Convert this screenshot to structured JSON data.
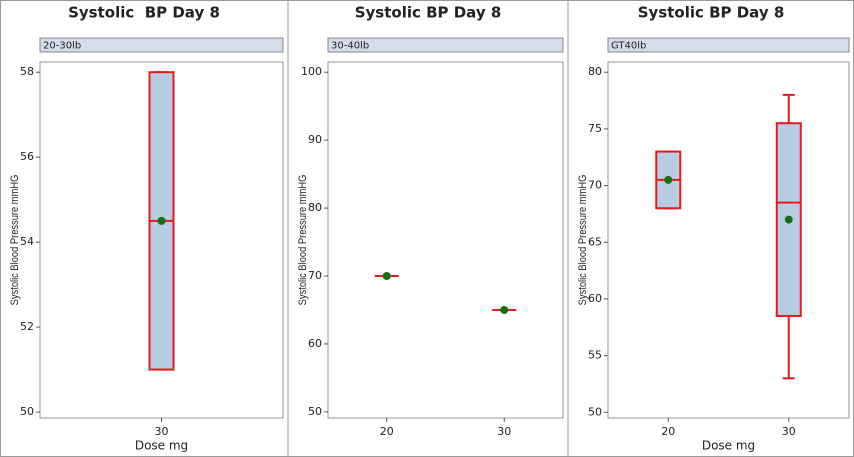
{
  "chart_data": [
    {
      "type": "box",
      "title": "Systolic  BP Day 8",
      "group_label": "20-30lb",
      "ylabel": "Systolic Blood Pressure mmHG",
      "xlabel": "Dose mg",
      "categories": [
        "30"
      ],
      "ylim": [
        49.86,
        58.24
      ],
      "yticks": [
        50,
        52,
        54,
        56,
        58
      ],
      "box_color": "#b8cce4",
      "line_color": "#e8191d",
      "mean_color": "#107010",
      "boxes": [
        {
          "min": 51,
          "q1": 51,
          "median": 54.5,
          "q3": 58,
          "max": 58,
          "mean": 54.5
        }
      ]
    },
    {
      "type": "box",
      "title": "Systolic BP Day 8",
      "group_label": "30-40lb",
      "ylabel": "Systolic Blood Pressure mmHG",
      "categories": [
        "20",
        "30"
      ],
      "ylim": [
        49.1,
        101.5
      ],
      "yticks": [
        50,
        60,
        70,
        80,
        90,
        100
      ],
      "box_color": "#b8cce4",
      "line_color": "#e8191d",
      "mean_color": "#107010",
      "boxes": [
        {
          "min": 70,
          "q1": 70,
          "median": 70,
          "q3": 70,
          "max": 70,
          "mean": 70
        },
        {
          "min": 65,
          "q1": 65,
          "median": 65,
          "q3": 65,
          "max": 65,
          "mean": 65
        }
      ]
    },
    {
      "type": "box",
      "title": "Systolic BP Day 8",
      "group_label": "GT40lb",
      "ylabel": "Systolic Blood Pressure mmHG",
      "xlabel": "Dose mg",
      "categories": [
        "20",
        "30"
      ],
      "ylim": [
        49.5,
        80.9
      ],
      "yticks": [
        50,
        55,
        60,
        65,
        70,
        75,
        80
      ],
      "box_color": "#b8cce4",
      "line_color": "#e8191d",
      "mean_color": "#107010",
      "boxes": [
        {
          "min": 68,
          "q1": 68,
          "median": 70.5,
          "q3": 73,
          "max": 73,
          "mean": 70.5
        },
        {
          "min": 53,
          "q1": 58.5,
          "median": 68.5,
          "q3": 75.5,
          "max": 78,
          "mean": 67
        }
      ]
    }
  ]
}
